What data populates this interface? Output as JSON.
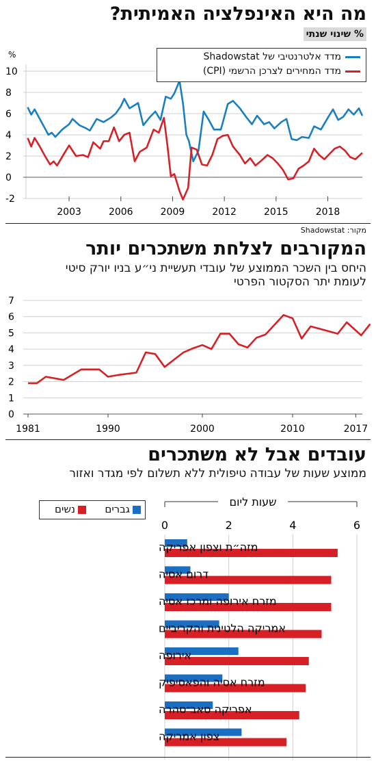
{
  "panel1": {
    "title": "מה היא האינפלציה האמיתית?",
    "badge": "% שינוי שנתי",
    "unit": "%",
    "source": "מקור: Shadowstat",
    "legend": [
      "מדד אלטרנטיבי של Shadowstat",
      "מדד המחירים לצרכן הרשמי (CPI)"
    ]
  },
  "panel2": {
    "title": "המקורבים לצלחת משתכרים יותר",
    "subtitle_line1": "היחס בין השכר הממוצע של עובדי תעשיית ני״ע בניו יורק סיטי",
    "subtitle_line2": "לעומת יתר הסקטור הפרטי"
  },
  "panel3": {
    "title": "עובדים אבל לא משתכרים",
    "subtitle": "ממוצע שעות של עבודה טיפולית ללא תשלום לפי מגדר ואזור",
    "axis_title": "שעות ליום",
    "legend": [
      "גברים",
      "נשים"
    ]
  },
  "colors": {
    "blue": "#1a7fbf",
    "red": "#d62026",
    "bar_blue": "#1b6fc2",
    "bar_red": "#d62026",
    "badge": "#d9d9d9"
  },
  "chart_data": [
    {
      "type": "line",
      "title": "מה היא האינפלציה האמיתית?",
      "ylabel": "%",
      "ylim": [
        -2,
        10
      ],
      "yticks": [
        -2,
        0,
        2,
        4,
        6,
        8,
        10
      ],
      "xlim": [
        2000.5,
        2019.2
      ],
      "xticks": [
        2003,
        2006,
        2009,
        2012,
        2015,
        2018
      ],
      "grid": true,
      "legend_position": "top-right",
      "series": [
        {
          "name": "מדד אלטרנטיבי של Shadowstat",
          "color": "#1a7fbf",
          "points": [
            [
              2000.6,
              6.6
            ],
            [
              2000.8,
              5.9
            ],
            [
              2001.0,
              6.4
            ],
            [
              2001.4,
              5.2
            ],
            [
              2001.8,
              4.0
            ],
            [
              2002.0,
              4.2
            ],
            [
              2002.2,
              3.8
            ],
            [
              2002.6,
              4.5
            ],
            [
              2003.0,
              5.0
            ],
            [
              2003.2,
              5.5
            ],
            [
              2003.6,
              4.9
            ],
            [
              2004.0,
              4.6
            ],
            [
              2004.2,
              4.4
            ],
            [
              2004.6,
              5.5
            ],
            [
              2005.0,
              5.2
            ],
            [
              2005.4,
              5.6
            ],
            [
              2005.7,
              6.0
            ],
            [
              2006.0,
              6.7
            ],
            [
              2006.2,
              7.4
            ],
            [
              2006.5,
              6.5
            ],
            [
              2006.8,
              6.8
            ],
            [
              2007.0,
              7.0
            ],
            [
              2007.3,
              4.9
            ],
            [
              2007.7,
              5.7
            ],
            [
              2008.0,
              6.2
            ],
            [
              2008.3,
              5.4
            ],
            [
              2008.6,
              7.6
            ],
            [
              2008.9,
              7.4
            ],
            [
              2009.1,
              7.9
            ],
            [
              2009.4,
              9.1
            ],
            [
              2009.6,
              7.0
            ],
            [
              2009.8,
              4.0
            ],
            [
              2009.95,
              3.4
            ],
            [
              2010.2,
              1.5
            ],
            [
              2010.5,
              2.5
            ],
            [
              2010.8,
              6.2
            ],
            [
              2011.1,
              5.4
            ],
            [
              2011.4,
              4.5
            ],
            [
              2011.8,
              4.5
            ],
            [
              2012.2,
              6.9
            ],
            [
              2012.5,
              7.2
            ],
            [
              2012.9,
              6.5
            ],
            [
              2013.3,
              5.6
            ],
            [
              2013.6,
              5.0
            ],
            [
              2013.9,
              5.8
            ],
            [
              2014.3,
              5.0
            ],
            [
              2014.6,
              5.2
            ],
            [
              2014.9,
              4.6
            ],
            [
              2015.3,
              5.2
            ],
            [
              2015.6,
              5.5
            ],
            [
              2015.9,
              3.6
            ],
            [
              2016.2,
              3.5
            ],
            [
              2016.5,
              3.8
            ],
            [
              2016.9,
              3.7
            ],
            [
              2017.2,
              4.8
            ],
            [
              2017.6,
              4.5
            ],
            [
              2018.0,
              5.6
            ],
            [
              2018.3,
              6.4
            ],
            [
              2018.6,
              5.4
            ],
            [
              2018.9,
              5.7
            ],
            [
              2019.2,
              6.4
            ],
            [
              2019.5,
              5.9
            ],
            [
              2019.8,
              6.5
            ],
            [
              2020.0,
              5.8
            ]
          ]
        },
        {
          "name": "מדד המחירים לצרכן הרשמי (CPI)",
          "color": "#d62026",
          "points": [
            [
              2000.6,
              3.7
            ],
            [
              2000.8,
              2.9
            ],
            [
              2001.0,
              3.7
            ],
            [
              2001.3,
              2.9
            ],
            [
              2001.6,
              2.0
            ],
            [
              2001.9,
              1.2
            ],
            [
              2002.1,
              1.5
            ],
            [
              2002.3,
              1.1
            ],
            [
              2002.7,
              2.2
            ],
            [
              2003.0,
              3.0
            ],
            [
              2003.4,
              2.0
            ],
            [
              2003.8,
              2.1
            ],
            [
              2004.1,
              1.9
            ],
            [
              2004.4,
              3.3
            ],
            [
              2004.8,
              2.7
            ],
            [
              2005.0,
              3.4
            ],
            [
              2005.3,
              3.4
            ],
            [
              2005.6,
              4.7
            ],
            [
              2005.9,
              3.4
            ],
            [
              2006.2,
              4.0
            ],
            [
              2006.5,
              4.2
            ],
            [
              2006.8,
              1.5
            ],
            [
              2007.1,
              2.4
            ],
            [
              2007.5,
              2.8
            ],
            [
              2007.9,
              4.5
            ],
            [
              2008.2,
              4.2
            ],
            [
              2008.5,
              5.6
            ],
            [
              2008.7,
              3.0
            ],
            [
              2008.9,
              0.1
            ],
            [
              2009.1,
              0.3
            ],
            [
              2009.4,
              -1.3
            ],
            [
              2009.6,
              -2.1
            ],
            [
              2009.9,
              -1.0
            ],
            [
              2010.1,
              2.8
            ],
            [
              2010.4,
              2.6
            ],
            [
              2010.7,
              1.2
            ],
            [
              2011.0,
              1.1
            ],
            [
              2011.3,
              2.1
            ],
            [
              2011.6,
              3.6
            ],
            [
              2011.9,
              3.9
            ],
            [
              2012.2,
              4.0
            ],
            [
              2012.5,
              2.9
            ],
            [
              2012.9,
              2.1
            ],
            [
              2013.2,
              1.3
            ],
            [
              2013.5,
              1.8
            ],
            [
              2013.8,
              1.1
            ],
            [
              2014.1,
              1.5
            ],
            [
              2014.5,
              2.1
            ],
            [
              2014.8,
              1.8
            ],
            [
              2015.1,
              1.3
            ],
            [
              2015.4,
              0.7
            ],
            [
              2015.7,
              -0.2
            ],
            [
              2016.0,
              -0.1
            ],
            [
              2016.3,
              0.8
            ],
            [
              2016.6,
              1.1
            ],
            [
              2016.9,
              1.5
            ],
            [
              2017.2,
              2.7
            ],
            [
              2017.5,
              2.1
            ],
            [
              2017.8,
              1.7
            ],
            [
              2018.1,
              2.2
            ],
            [
              2018.4,
              2.7
            ],
            [
              2018.7,
              2.9
            ],
            [
              2019.0,
              2.5
            ],
            [
              2019.3,
              1.9
            ],
            [
              2019.6,
              1.7
            ],
            [
              2020.0,
              2.3
            ]
          ]
        }
      ]
    },
    {
      "type": "line",
      "title": "המקורבים לצלחת משתכרים יותר",
      "ylim": [
        0,
        7
      ],
      "yticks": [
        0,
        1,
        2,
        3,
        4,
        5,
        6,
        7
      ],
      "xlim": [
        1981,
        2017
      ],
      "xticks": [
        1981,
        1990,
        2000,
        2010,
        2017
      ],
      "grid": true,
      "series": [
        {
          "name": "",
          "color": "#d62026",
          "points": [
            [
              1981,
              1.9
            ],
            [
              1982,
              1.9
            ],
            [
              1983,
              2.3
            ],
            [
              1985,
              2.1
            ],
            [
              1987,
              2.75
            ],
            [
              1989,
              2.75
            ],
            [
              1990,
              2.3
            ],
            [
              1991,
              2.4
            ],
            [
              1993,
              2.55
            ],
            [
              1994,
              3.8
            ],
            [
              1995,
              3.7
            ],
            [
              1996,
              2.9
            ],
            [
              1998,
              3.8
            ],
            [
              1999,
              4.05
            ],
            [
              2000,
              4.25
            ],
            [
              2001,
              4.0
            ],
            [
              2002,
              4.95
            ],
            [
              2003,
              4.95
            ],
            [
              2004,
              4.3
            ],
            [
              2005,
              4.1
            ],
            [
              2006,
              4.7
            ],
            [
              2007,
              4.9
            ],
            [
              2009,
              6.1
            ],
            [
              2010,
              5.9
            ],
            [
              2011,
              4.65
            ],
            [
              2012,
              5.4
            ],
            [
              2015,
              4.95
            ],
            [
              2016,
              5.65
            ],
            [
              2017.6,
              4.85
            ],
            [
              2018.6,
              5.55
            ]
          ]
        }
      ]
    },
    {
      "type": "bar",
      "orientation": "horizontal",
      "title": "עובדים אבל לא משתכרים",
      "xlabel": "שעות ליום",
      "xlim": [
        0,
        6
      ],
      "xticks": [
        0,
        2,
        4,
        6
      ],
      "grid": true,
      "legend_position": "top-left",
      "categories": [
        "מזה״ת וצפון אפריקה",
        "דרום אסיה",
        "מזרח אירופה ומרכז אסיה",
        "אמריקה הלטינית והקריביים",
        "אירופה",
        "מזרח אסיה והפאסיפיק",
        "אפריקה סאב־סהרה",
        "צפון אמריקה"
      ],
      "series": [
        {
          "name": "גברים",
          "color": "#1b6fc2",
          "values": [
            0.7,
            0.8,
            2.0,
            1.7,
            2.3,
            1.8,
            1.5,
            2.4
          ]
        },
        {
          "name": "נשים",
          "color": "#d62026",
          "values": [
            5.4,
            5.2,
            5.2,
            4.9,
            4.5,
            4.4,
            4.2,
            3.8
          ]
        }
      ]
    }
  ]
}
